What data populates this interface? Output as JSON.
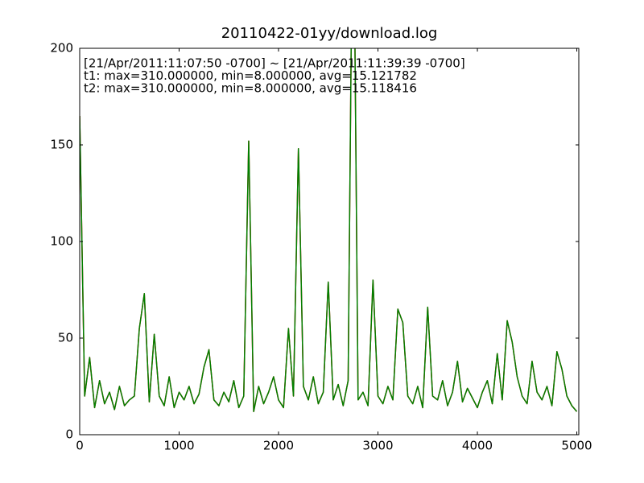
{
  "chart_data": {
    "type": "line",
    "title": "20110422-01yy/download.log",
    "annotations": [
      {
        "text": "[21/Apr/2011:11:07:50 -0700] ~ [21/Apr/2011:11:39:39 -0700]",
        "color": "#000000"
      },
      {
        "text": "t1: max=310.000000, min=8.000000, avg=15.121782",
        "color": "#ff0000"
      },
      {
        "text": "t2: max=310.000000, min=8.000000, avg=15.118416",
        "color": "#008000"
      }
    ],
    "x": [
      0,
      50,
      100,
      150,
      200,
      250,
      300,
      350,
      400,
      450,
      500,
      550,
      600,
      650,
      700,
      750,
      800,
      850,
      900,
      950,
      1000,
      1050,
      1100,
      1150,
      1200,
      1250,
      1300,
      1350,
      1400,
      1450,
      1500,
      1550,
      1600,
      1650,
      1700,
      1750,
      1800,
      1850,
      1900,
      1950,
      2000,
      2050,
      2100,
      2150,
      2200,
      2250,
      2300,
      2350,
      2400,
      2450,
      2500,
      2550,
      2600,
      2650,
      2700,
      2750,
      2800,
      2850,
      2900,
      2950,
      3000,
      3050,
      3100,
      3150,
      3200,
      3250,
      3300,
      3350,
      3400,
      3450,
      3500,
      3550,
      3600,
      3650,
      3700,
      3750,
      3800,
      3850,
      3900,
      3950,
      4000,
      4050,
      4100,
      4150,
      4200,
      4250,
      4300,
      4350,
      4400,
      4450,
      4500,
      4550,
      4600,
      4650,
      4700,
      4750,
      4800,
      4850,
      4900,
      4950,
      5000
    ],
    "series": [
      {
        "name": "t1",
        "color": "#ff0000",
        "values": [
          165,
          20,
          40,
          14,
          28,
          16,
          22,
          13,
          25,
          15,
          18,
          20,
          55,
          73,
          17,
          52,
          20,
          15,
          30,
          14,
          22,
          18,
          25,
          16,
          21,
          35,
          44,
          18,
          15,
          22,
          17,
          28,
          14,
          20,
          152,
          12,
          25,
          16,
          22,
          30,
          18,
          14,
          55,
          20,
          148,
          25,
          18,
          30,
          16,
          22,
          79,
          18,
          26,
          15,
          28,
          310,
          18,
          22,
          15,
          80,
          20,
          16,
          25,
          18,
          65,
          58,
          20,
          16,
          25,
          14,
          66,
          20,
          18,
          28,
          15,
          22,
          38,
          17,
          24,
          19,
          14,
          22,
          28,
          16,
          42,
          18,
          59,
          48,
          30,
          20,
          16,
          38,
          22,
          18,
          25,
          15,
          43,
          34,
          20,
          15,
          12
        ]
      },
      {
        "name": "t2",
        "color": "#008000",
        "values": [
          165,
          20,
          40,
          14,
          28,
          16,
          22,
          13,
          25,
          15,
          18,
          20,
          55,
          73,
          17,
          52,
          20,
          15,
          30,
          14,
          22,
          18,
          25,
          16,
          21,
          35,
          44,
          18,
          15,
          22,
          17,
          28,
          14,
          20,
          152,
          12,
          25,
          16,
          22,
          30,
          18,
          14,
          55,
          20,
          148,
          25,
          18,
          30,
          16,
          22,
          79,
          18,
          26,
          15,
          28,
          310,
          18,
          22,
          15,
          80,
          20,
          16,
          25,
          18,
          65,
          58,
          20,
          16,
          25,
          14,
          66,
          20,
          18,
          28,
          15,
          22,
          38,
          17,
          24,
          19,
          14,
          22,
          28,
          16,
          42,
          18,
          59,
          48,
          30,
          20,
          16,
          38,
          22,
          18,
          25,
          15,
          43,
          34,
          20,
          15,
          12
        ]
      }
    ],
    "xlim": [
      0,
      5020
    ],
    "xticks": [
      0,
      1000,
      2000,
      3000,
      4000,
      5000
    ],
    "ylim": [
      0,
      200
    ],
    "yticks": [
      0,
      50,
      100,
      150,
      200
    ]
  }
}
